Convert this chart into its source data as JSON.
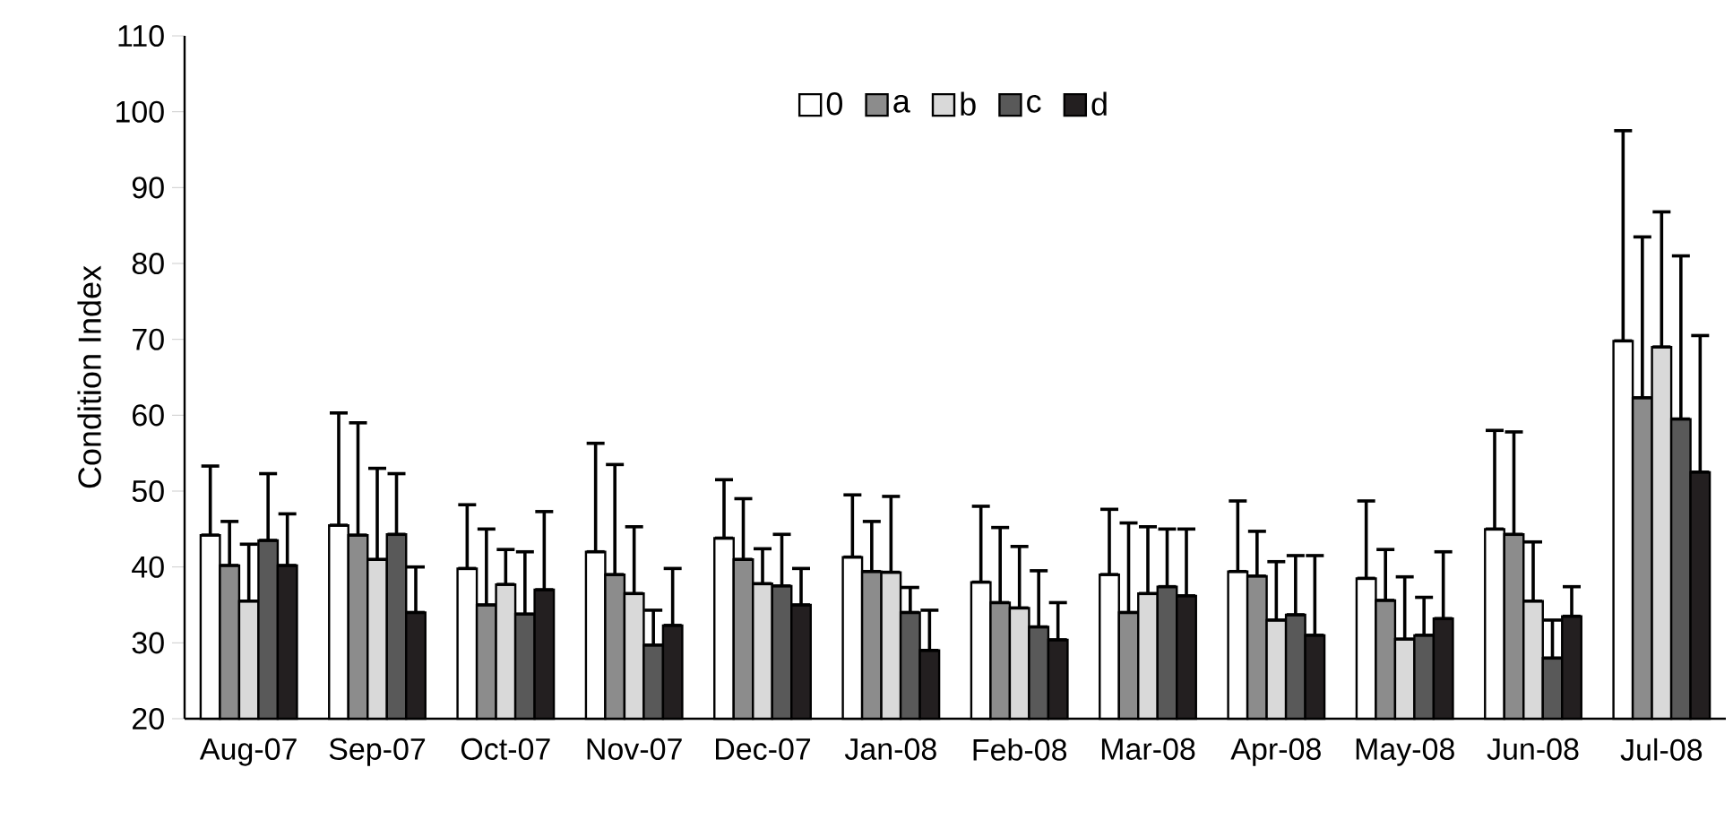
{
  "chart_data": {
    "type": "bar",
    "ylabel": "Condition Index",
    "categories": [
      "Aug-07",
      "Sep-07",
      "Oct-07",
      "Nov-07",
      "Dec-07",
      "Jan-08",
      "Feb-08",
      "Mar-08",
      "Apr-08",
      "May-08",
      "Jun-08",
      "Jul-08"
    ],
    "series": [
      {
        "name": "0",
        "color": "#ffffff",
        "values": [
          44.2,
          45.5,
          39.8,
          42,
          43.8,
          41.3,
          38,
          39,
          39.4,
          38.5,
          45,
          69.8
        ],
        "errors": [
          [
            44.2,
            53.3
          ],
          [
            45.5,
            60.3
          ],
          [
            39.8,
            48.2
          ],
          [
            42,
            56.3
          ],
          [
            43.8,
            51.5
          ],
          [
            41.3,
            49.5
          ],
          [
            38,
            48
          ],
          [
            39,
            47.6
          ],
          [
            39.4,
            48.7
          ],
          [
            38.5,
            48.7
          ],
          [
            45,
            58
          ],
          [
            69.8,
            97.5
          ]
        ]
      },
      {
        "name": "a",
        "color": "#8c8c8c",
        "values": [
          40.2,
          44.2,
          35,
          39,
          41,
          39.4,
          35.3,
          34,
          38.8,
          35.6,
          44.3,
          62.3
        ],
        "errors": [
          [
            40.2,
            46
          ],
          [
            44.2,
            59
          ],
          [
            35,
            45
          ],
          [
            39,
            53.5
          ],
          [
            41,
            49
          ],
          [
            39.4,
            46
          ],
          [
            35.3,
            45.2
          ],
          [
            34,
            45.8
          ],
          [
            38.8,
            44.7
          ],
          [
            35.6,
            42.3
          ],
          [
            44.3,
            57.8
          ],
          [
            62.3,
            83.5
          ]
        ]
      },
      {
        "name": "b",
        "color": "#d9d9d9",
        "values": [
          35.5,
          41,
          37.7,
          36.5,
          37.8,
          39.3,
          34.6,
          36.5,
          33,
          30.5,
          35.5,
          69
        ],
        "errors": [
          [
            35.5,
            43
          ],
          [
            41,
            53
          ],
          [
            37.7,
            42.3
          ],
          [
            36.5,
            45.3
          ],
          [
            37.8,
            42.4
          ],
          [
            39.3,
            49.3
          ],
          [
            34.6,
            42.7
          ],
          [
            36.5,
            45.3
          ],
          [
            33,
            40.7
          ],
          [
            30.5,
            38.7
          ],
          [
            35.5,
            43.3
          ],
          [
            69,
            86.8
          ]
        ]
      },
      {
        "name": "c",
        "color": "#595959",
        "values": [
          43.5,
          44.3,
          33.8,
          29.7,
          37.5,
          34,
          32.1,
          37.4,
          33.7,
          31,
          28,
          59.5
        ],
        "errors": [
          [
            43.5,
            52.3
          ],
          [
            44.3,
            52.3
          ],
          [
            33.8,
            42
          ],
          [
            29.7,
            34.3
          ],
          [
            37.5,
            44.3
          ],
          [
            34,
            37.3
          ],
          [
            32.1,
            39.5
          ],
          [
            37.4,
            45
          ],
          [
            33.7,
            41.5
          ],
          [
            31,
            36
          ],
          [
            28,
            33
          ],
          [
            59.5,
            81
          ]
        ]
      },
      {
        "name": "d",
        "color": "#231f20",
        "values": [
          40.2,
          34,
          37,
          32.3,
          35,
          29,
          30.4,
          36.2,
          31,
          33.2,
          33.5,
          52.5
        ],
        "errors": [
          [
            40.2,
            47
          ],
          [
            34,
            40
          ],
          [
            37,
            47.3
          ],
          [
            32.3,
            39.8
          ],
          [
            35,
            39.8
          ],
          [
            29,
            34.3
          ],
          [
            30.4,
            35.3
          ],
          [
            36.2,
            45
          ],
          [
            31,
            41.5
          ],
          [
            33.2,
            42
          ],
          [
            33.5,
            37.4
          ],
          [
            52.5,
            70.5
          ]
        ]
      }
    ],
    "ylim": [
      20,
      110
    ],
    "yticks": [
      20,
      30,
      40,
      50,
      60,
      70,
      80,
      90,
      100,
      110
    ],
    "legend": "top",
    "grid": false
  }
}
